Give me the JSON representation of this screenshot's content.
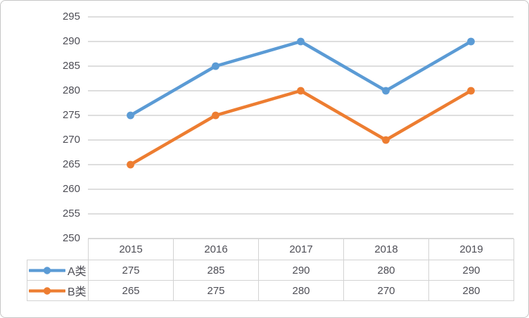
{
  "chart_data": {
    "type": "line",
    "title": "",
    "xlabel": "",
    "ylabel": "",
    "categories": [
      "2015",
      "2016",
      "2017",
      "2018",
      "2019"
    ],
    "series": [
      {
        "name": "A类",
        "values": [
          275,
          285,
          290,
          280,
          290
        ],
        "color": "#5B9BD5",
        "marker": "circle"
      },
      {
        "name": "B类",
        "values": [
          265,
          275,
          280,
          270,
          280
        ],
        "color": "#ED7D31",
        "marker": "circle"
      }
    ],
    "ylim": [
      250,
      295
    ],
    "ytick_step": 5,
    "yticks": [
      "295",
      "290",
      "285",
      "280",
      "275",
      "270",
      "265",
      "260",
      "255",
      "250"
    ],
    "grid": true,
    "legend_position": "data-table-left-column",
    "data_table_shown": true
  },
  "colors": {
    "grid": "#D9D9D9",
    "frame_border": "#C6C6C6",
    "table_border": "#D3D3D3",
    "text": "#4E4E56"
  }
}
